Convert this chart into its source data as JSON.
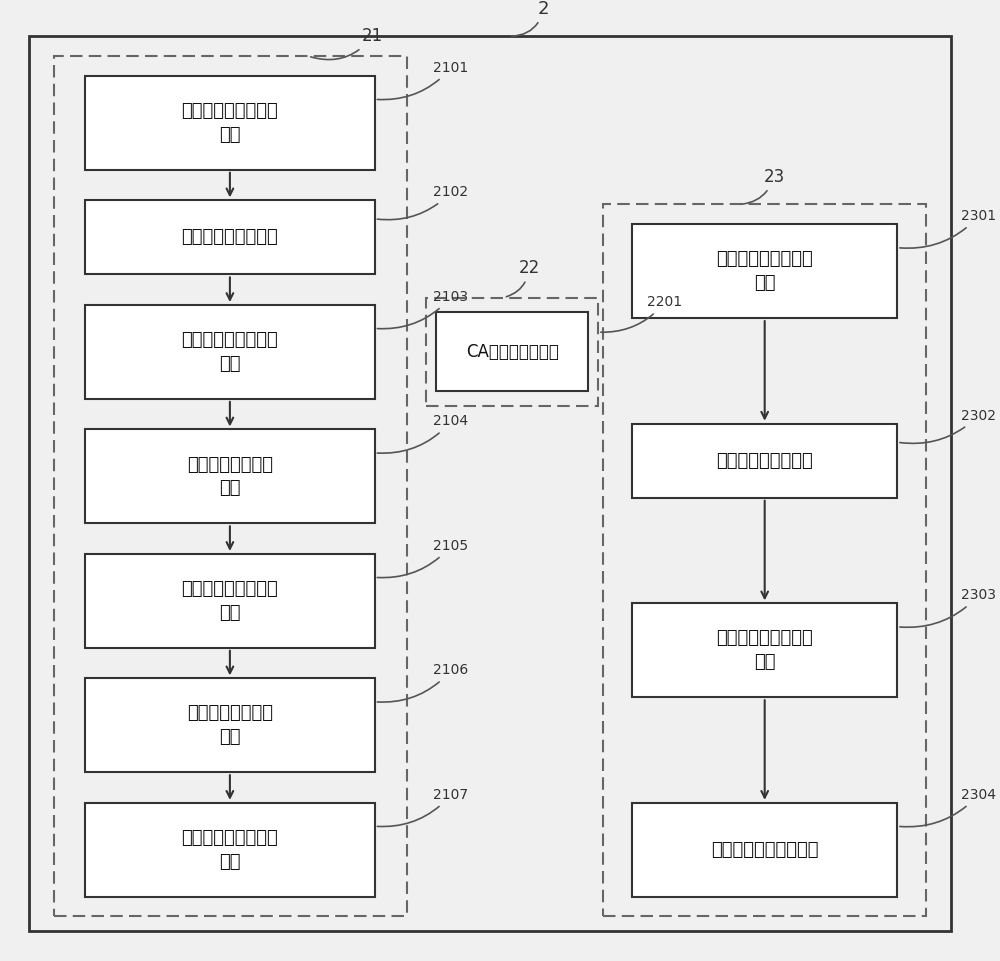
{
  "bg_color": "#f0f0f0",
  "inner_bg": "#f0f0f0",
  "box_fill": "#ffffff",
  "box_edge": "#333333",
  "text_color": "#111111",
  "label_color": "#333333",
  "dashed_color": "#666666",
  "outer_label": "2",
  "left_group_label": "21",
  "right_group_label": "23",
  "ca_group_label": "22",
  "left_boxes": [
    {
      "id": "2101",
      "text": "第一客户端消息发送\n单元"
    },
    {
      "id": "2102",
      "text": "客户端密文获取单元"
    },
    {
      "id": "2103",
      "text": "第二客户端消息发送\n单元"
    },
    {
      "id": "2104",
      "text": "客户端解密与验证\n单元"
    },
    {
      "id": "2105",
      "text": "第三客户端消息发送\n单元"
    },
    {
      "id": "2106",
      "text": "客户端主密鑰设置\n单元"
    },
    {
      "id": "2107",
      "text": "第四客户端消息发送\n单元"
    }
  ],
  "right_boxes": [
    {
      "id": "2301",
      "text": "第一服务器消息发送\n单元"
    },
    {
      "id": "2302",
      "text": "服务器密文生成单元"
    },
    {
      "id": "2303",
      "text": "第二服务器消息发送\n单元"
    },
    {
      "id": "2304",
      "text": "服务器主密鑰设置单元"
    }
  ],
  "ca_box": {
    "id": "2201",
    "text": "CA加密和发送单元"
  }
}
